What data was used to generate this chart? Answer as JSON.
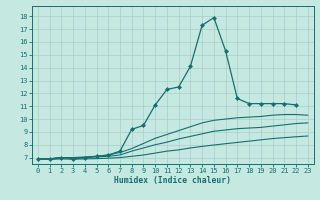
{
  "xlabel": "Humidex (Indice chaleur)",
  "bg_color": "#c5e8e0",
  "grid_color": "#a8cfc8",
  "line_color": "#147070",
  "xlim": [
    -0.5,
    23.5
  ],
  "ylim": [
    6.5,
    18.8
  ],
  "xticks": [
    0,
    1,
    2,
    3,
    4,
    5,
    6,
    7,
    8,
    9,
    10,
    11,
    12,
    13,
    14,
    15,
    16,
    17,
    18,
    19,
    20,
    21,
    22,
    23
  ],
  "yticks": [
    7,
    8,
    9,
    10,
    11,
    12,
    13,
    14,
    15,
    16,
    17,
    18
  ],
  "lines": [
    {
      "x": [
        0,
        1,
        2,
        3,
        4,
        5,
        6,
        7,
        8,
        9,
        10,
        11,
        12,
        13,
        14,
        15,
        16,
        17,
        18,
        19,
        20,
        21,
        22
      ],
      "y": [
        6.9,
        6.9,
        7.0,
        6.9,
        7.0,
        7.1,
        7.2,
        7.5,
        9.2,
        9.5,
        11.1,
        12.3,
        12.5,
        14.1,
        17.3,
        17.9,
        15.3,
        11.6,
        11.2,
        11.2,
        11.2,
        11.2,
        11.1
      ],
      "marker": true
    },
    {
      "x": [
        0,
        1,
        2,
        3,
        4,
        5,
        6,
        7,
        8,
        9,
        10,
        11,
        12,
        13,
        14,
        15,
        16,
        17,
        18,
        19,
        20,
        21,
        22,
        23
      ],
      "y": [
        6.9,
        6.9,
        7.0,
        7.0,
        7.05,
        7.1,
        7.2,
        7.4,
        7.7,
        8.1,
        8.5,
        8.8,
        9.1,
        9.4,
        9.7,
        9.9,
        10.0,
        10.1,
        10.15,
        10.2,
        10.3,
        10.35,
        10.35,
        10.3
      ],
      "marker": false
    },
    {
      "x": [
        0,
        1,
        2,
        3,
        4,
        5,
        6,
        7,
        8,
        9,
        10,
        11,
        12,
        13,
        14,
        15,
        16,
        17,
        18,
        19,
        20,
        21,
        22,
        23
      ],
      "y": [
        6.9,
        6.9,
        7.0,
        7.0,
        7.0,
        7.05,
        7.1,
        7.2,
        7.5,
        7.75,
        8.0,
        8.2,
        8.45,
        8.65,
        8.85,
        9.05,
        9.15,
        9.25,
        9.3,
        9.35,
        9.45,
        9.55,
        9.65,
        9.7
      ],
      "marker": false
    },
    {
      "x": [
        0,
        1,
        2,
        3,
        4,
        5,
        6,
        7,
        8,
        9,
        10,
        11,
        12,
        13,
        14,
        15,
        16,
        17,
        18,
        19,
        20,
        21,
        22,
        23
      ],
      "y": [
        6.9,
        6.85,
        6.9,
        6.87,
        6.9,
        6.92,
        6.95,
        7.0,
        7.1,
        7.2,
        7.35,
        7.5,
        7.6,
        7.75,
        7.87,
        7.98,
        8.08,
        8.18,
        8.28,
        8.38,
        8.48,
        8.55,
        8.62,
        8.68
      ],
      "marker": false
    }
  ]
}
